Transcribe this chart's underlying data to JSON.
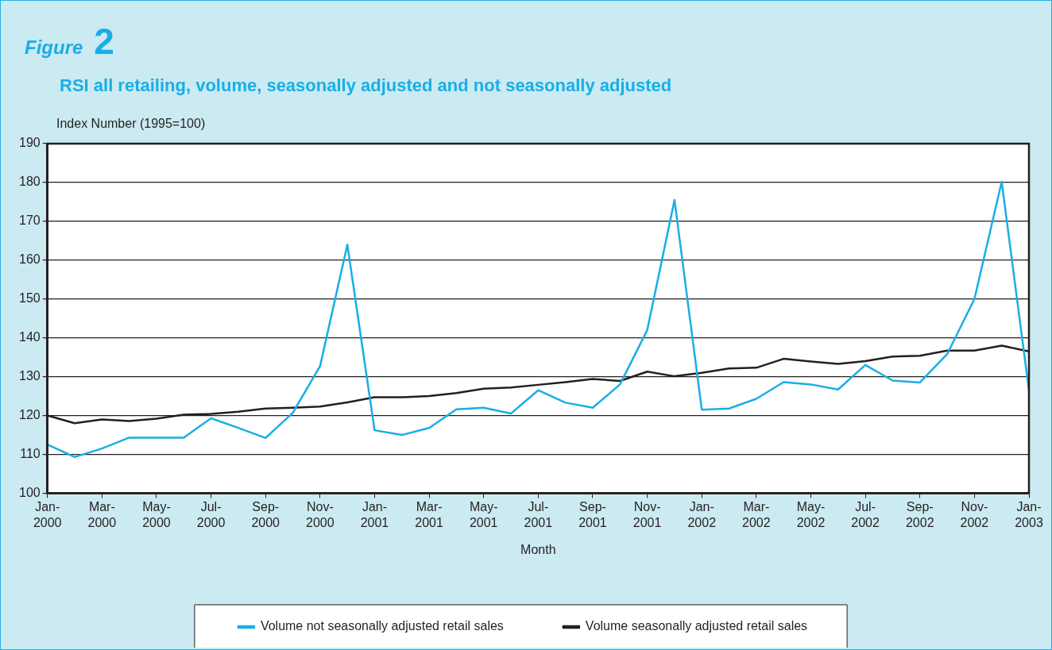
{
  "chart_data": {
    "type": "line",
    "title": "Figure 2",
    "subtitle": "RSI all retailing, volume, seasonally adjusted and not seasonally adjusted",
    "ylabel": "Index Number (1995=100)",
    "xlabel": "Month",
    "categories": [
      "Jan-2000",
      null,
      "Mar-2000",
      null,
      "May-2000",
      null,
      "Jul-2000",
      null,
      "Sep-2000",
      null,
      "Nov-2000",
      null,
      "Jan-2001",
      null,
      "Mar-2001",
      null,
      "May-2001",
      null,
      "Jul-2001",
      null,
      "Sep-2001",
      null,
      "Nov-2001",
      null,
      "Jan-2002",
      null,
      "Mar-2002",
      null,
      "May-2002",
      null,
      "Jul-2002",
      null,
      "Sep-2002",
      null,
      "Nov-2002",
      null,
      "Jan-2003"
    ],
    "series": [
      {
        "name": "Volume not seasonally adjusted retail sales",
        "color": "#19aee6",
        "values": [
          112.5,
          109.3,
          111.5,
          114.3,
          114.3,
          114.3,
          119.3,
          116.8,
          114.2,
          120.7,
          132.7,
          164.0,
          116.2,
          115.0,
          116.8,
          121.6,
          122.0,
          120.5,
          126.5,
          123.3,
          122.0,
          128.0,
          142.0,
          175.5,
          121.5,
          121.8,
          124.3,
          128.6,
          128.0,
          126.7,
          133.0,
          129.0,
          128.5,
          135.8,
          150.0,
          180.2,
          126.5
        ]
      },
      {
        "name": "Volume seasonally adjusted retail sales",
        "color": "#231f20",
        "values": [
          120.0,
          118.0,
          119.0,
          118.6,
          119.2,
          120.2,
          120.4,
          121.0,
          121.8,
          122.0,
          122.3,
          123.4,
          124.7,
          124.7,
          125.0,
          125.8,
          126.9,
          127.2,
          127.9,
          128.6,
          129.4,
          128.9,
          131.3,
          130.1,
          131.0,
          132.1,
          132.3,
          134.6,
          133.9,
          133.3,
          134.0,
          135.2,
          135.4,
          136.7,
          136.7,
          138.0,
          136.5
        ]
      }
    ],
    "ylim": [
      100,
      190
    ],
    "yticks": [
      100,
      110,
      120,
      130,
      140,
      150,
      160,
      170,
      180,
      190
    ],
    "grid": "y",
    "legend": "bottom",
    "marker": "none",
    "line_style": "solid"
  }
}
